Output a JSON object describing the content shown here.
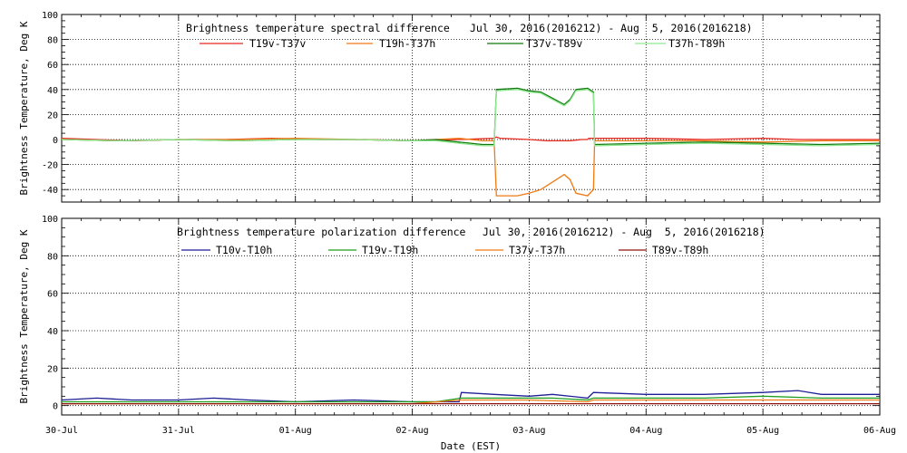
{
  "chart_data": [
    {
      "type": "line",
      "title": "Brightness temperature spectral difference",
      "date_range": "Jul 30, 2016(2016212) - Aug  5, 2016(2016218)",
      "ylabel": "Brightness Temperature, Deg K",
      "ylim": [
        -50,
        100
      ],
      "yticks": [
        -40,
        -20,
        0,
        20,
        40,
        60,
        80,
        100
      ],
      "grid": true,
      "legend_position": "top",
      "series": [
        {
          "name": "T19v-T37v",
          "color": "#e8281e",
          "x": [
            0,
            0.3,
            0.6,
            1.0,
            1.4,
            1.8,
            2.2,
            2.6,
            3.0,
            3.4,
            3.7,
            3.72,
            3.75,
            4.0,
            4.15,
            4.25,
            4.35,
            4.45,
            4.5,
            4.51,
            4.55,
            5.0,
            5.5,
            6.0,
            6.3,
            6.5,
            7.0
          ],
          "y": [
            1,
            0,
            -1,
            0,
            0,
            1,
            0,
            0,
            -1,
            0,
            1,
            2,
            1,
            0,
            -1,
            -1,
            -1,
            0,
            0,
            1,
            1,
            1,
            0,
            1,
            0,
            0,
            0
          ]
        },
        {
          "name": "T19h-T37h",
          "color": "#f07a14",
          "x": [
            0,
            0.5,
            1.0,
            1.5,
            2.0,
            2.5,
            3.0,
            3.2,
            3.4,
            3.5,
            3.6,
            3.7,
            3.72,
            3.9,
            4.0,
            4.1,
            4.2,
            4.3,
            4.35,
            4.4,
            4.5,
            4.55,
            4.56,
            5.0,
            5.5,
            6.0,
            6.5,
            7.0
          ],
          "y": [
            0,
            -1,
            0,
            0,
            1,
            0,
            -1,
            0,
            1,
            0,
            -1,
            -1,
            -45,
            -45,
            -43,
            -40,
            -34,
            -28,
            -32,
            -43,
            -45,
            -40,
            -1,
            -1,
            -1,
            -2,
            -1,
            -1
          ]
        },
        {
          "name": "T37v-T89v",
          "color": "#0f7a0f",
          "x": [
            0,
            0.5,
            1.0,
            1.5,
            2.0,
            2.5,
            3.0,
            3.2,
            3.4,
            3.5,
            3.6,
            3.7,
            3.72,
            3.9,
            4.0,
            4.1,
            4.2,
            4.3,
            4.35,
            4.4,
            4.5,
            4.55,
            4.56,
            5.0,
            5.5,
            6.0,
            6.5,
            7.0
          ],
          "y": [
            0,
            -1,
            0,
            -1,
            0,
            0,
            -1,
            0,
            -2,
            -3,
            -4,
            -4,
            40,
            41,
            39,
            38,
            33,
            28,
            32,
            40,
            41,
            38,
            -4,
            -3,
            -2,
            -3,
            -4,
            -3
          ]
        },
        {
          "name": "T37h-T89h",
          "color": "#90e890",
          "x": [
            0,
            0.5,
            1.0,
            1.5,
            2.0,
            2.5,
            3.0,
            3.2,
            3.4,
            3.5,
            3.6,
            3.7,
            3.72,
            3.9,
            4.0,
            4.1,
            4.2,
            4.3,
            4.35,
            4.4,
            4.5,
            4.55,
            4.56,
            5.0,
            5.5,
            6.0,
            6.5,
            7.0
          ],
          "y": [
            0,
            -1,
            0,
            -1,
            0,
            0,
            -1,
            -1,
            -3,
            -4,
            -5,
            -5,
            39,
            40,
            38,
            37,
            32,
            27,
            31,
            39,
            40,
            37,
            -5,
            -4,
            -3,
            -4,
            -5,
            -4
          ]
        }
      ]
    },
    {
      "type": "line",
      "title": "Brightness temperature polarization difference",
      "date_range": "Jul 30, 2016(2016212) - Aug  5, 2016(2016218)",
      "ylabel": "Brightness Temperature, Deg K",
      "xlabel": "Date (EST)",
      "ylim": [
        -5,
        100
      ],
      "yticks": [
        0,
        20,
        40,
        60,
        80,
        100
      ],
      "xticks": [
        "30-Jul",
        "31-Jul",
        "01-Aug",
        "02-Aug",
        "03-Aug",
        "04-Aug",
        "05-Aug",
        "06-Aug"
      ],
      "grid": true,
      "legend_position": "top",
      "series": [
        {
          "name": "T10v-T10h",
          "color": "#1e1e96",
          "x": [
            0,
            0.3,
            0.6,
            1.0,
            1.3,
            1.6,
            2.0,
            2.5,
            3.0,
            3.2,
            3.4,
            3.42,
            3.7,
            4.0,
            4.2,
            4.5,
            4.55,
            5.0,
            5.5,
            6.0,
            6.3,
            6.5,
            7.0
          ],
          "y": [
            3,
            4,
            3,
            3,
            4,
            3,
            2,
            3,
            2,
            2,
            2,
            7,
            6,
            5,
            6,
            4,
            7,
            6,
            6,
            7,
            8,
            6,
            6
          ]
        },
        {
          "name": "T19v-T19h",
          "color": "#1e9e1e",
          "x": [
            0,
            0.5,
            1.0,
            1.5,
            2.0,
            2.5,
            3.0,
            3.2,
            3.42,
            3.8,
            4.2,
            4.5,
            4.55,
            5.0,
            5.5,
            6.0,
            6.5,
            7.0
          ],
          "y": [
            2,
            2,
            2,
            2,
            2,
            2,
            2,
            2,
            4,
            4,
            4,
            3,
            4,
            4,
            4,
            5,
            4,
            4
          ]
        },
        {
          "name": "T37v-T37h",
          "color": "#f07a14",
          "x": [
            0,
            0.5,
            1.0,
            1.5,
            2.0,
            2.5,
            3.0,
            3.42,
            4.0,
            4.5,
            4.55,
            5.0,
            6.0,
            7.0
          ],
          "y": [
            1,
            1,
            1,
            1,
            1,
            1,
            1,
            3,
            3,
            2,
            3,
            3,
            3,
            3
          ]
        },
        {
          "name": "T89v-T89h",
          "color": "#8c140a",
          "x": [
            0,
            0.5,
            1.0,
            1.5,
            2.0,
            2.5,
            3.0,
            3.42,
            4.0,
            4.5,
            4.55,
            5.0,
            6.0,
            7.0
          ],
          "y": [
            1,
            1,
            1,
            1,
            1,
            1,
            1,
            1,
            1,
            1,
            1,
            1,
            1,
            1
          ]
        }
      ]
    }
  ]
}
